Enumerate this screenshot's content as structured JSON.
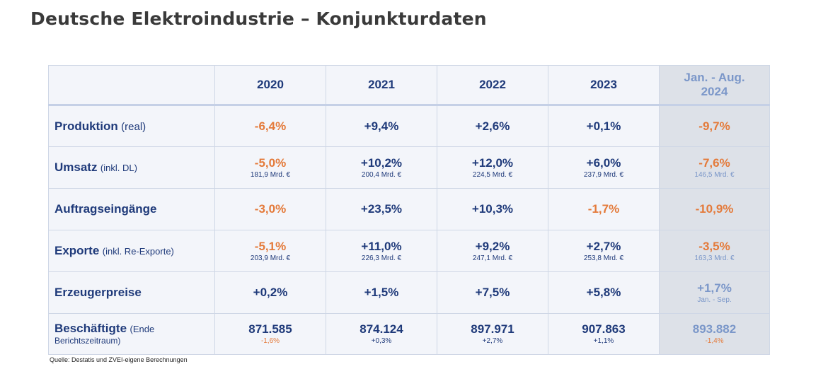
{
  "title": "Deutsche Elektroindustrie – Konjunkturdaten",
  "columns": [
    "2020",
    "2021",
    "2022",
    "2023",
    "Jan. - Aug.",
    "2024"
  ],
  "rows": {
    "produktion": {
      "label": "Produktion",
      "label_suffix": "(real)",
      "values": [
        "-6,4%",
        "+9,4%",
        "+2,6%",
        "+0,1%",
        "-9,7%"
      ]
    },
    "umsatz": {
      "label": "Umsatz",
      "label_suffix": "(inkl. DL)",
      "values": [
        "-5,0%",
        "+10,2%",
        "+12,0%",
        "+6,0%",
        "-7,6%"
      ],
      "subs": [
        "181,9 Mrd. €",
        "200,4 Mrd. €",
        "224,5 Mrd. €",
        "237,9 Mrd. €",
        "146,5 Mrd. €"
      ]
    },
    "auftrag": {
      "label": "Auftragseingänge",
      "values": [
        "-3,0%",
        "+23,5%",
        "+10,3%",
        "-1,7%",
        "-10,9%"
      ]
    },
    "exporte": {
      "label": "Exporte",
      "label_suffix": "(inkl. Re-Exporte)",
      "values": [
        "-5,1%",
        "+11,0%",
        "+9,2%",
        "+2,7%",
        "-3,5%"
      ],
      "subs": [
        "203,9 Mrd. €",
        "226,3 Mrd. €",
        "247,1 Mrd. €",
        "253,8 Mrd. €",
        "163,3 Mrd. €"
      ]
    },
    "preise": {
      "label": "Erzeugerpreise",
      "values": [
        "+0,2%",
        "+1,5%",
        "+7,5%",
        "+5,8%",
        "+1,7%"
      ],
      "last_sub": "Jan. - Sep."
    },
    "beschaeftigte": {
      "label": "Beschäftigte",
      "label_suffix": "(Ende",
      "label_line2": "Berichtszeitraum)",
      "values": [
        "871.585",
        "874.124",
        "897.971",
        "907.863",
        "893.882"
      ],
      "subs": [
        "-1,6%",
        "+0,3%",
        "+2,7%",
        "+1,1%",
        "-1,4%"
      ]
    }
  },
  "source": "Quelle: Destatis und ZVEI-eigene Berechnungen",
  "colors": {
    "negative": "#e47a3a",
    "positive": "#1f3a7a",
    "last_column": "#7b97c9"
  }
}
